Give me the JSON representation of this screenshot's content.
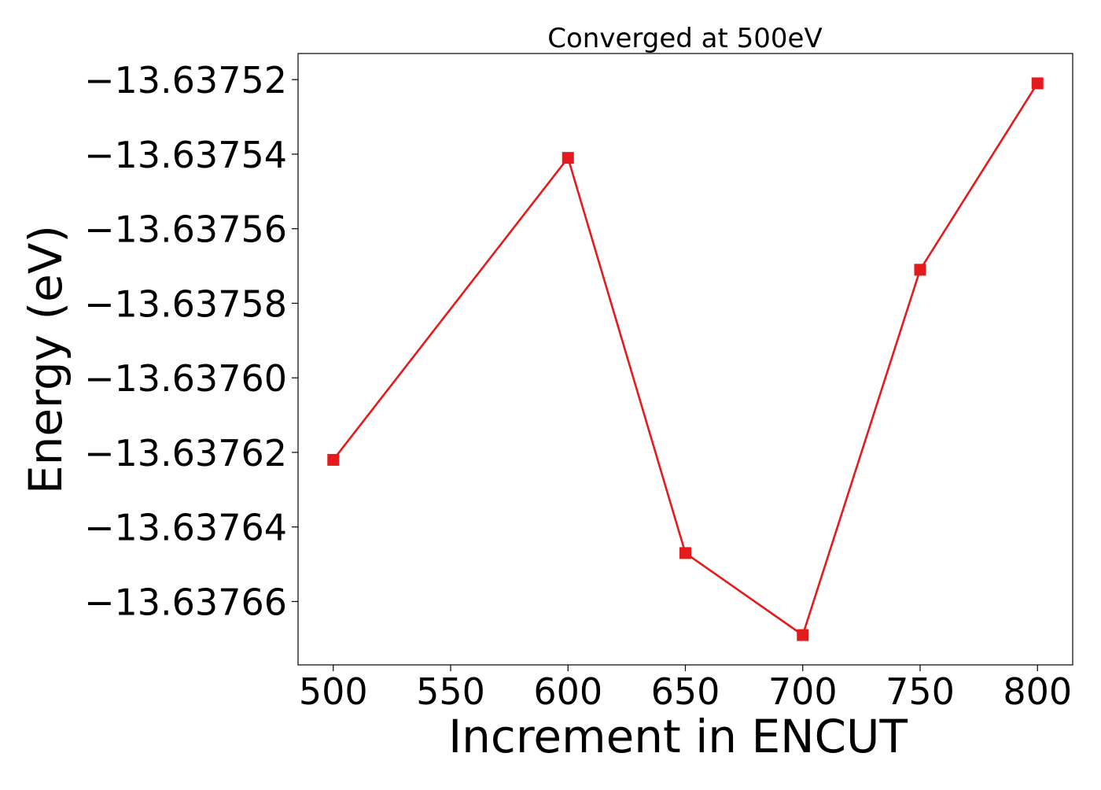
{
  "chart_data": {
    "type": "line",
    "title": "Converged at 500eV",
    "xlabel": "Increment in ENCUT",
    "ylabel": "Energy (eV)",
    "x": [
      500,
      600,
      650,
      700,
      750,
      800
    ],
    "series": [
      {
        "color": "#e41a1c",
        "marker": "square",
        "values": [
          -13.637622,
          -13.637541,
          -13.637647,
          -13.637669,
          -13.637571,
          -13.637521
        ]
      }
    ],
    "xticks": [
      500,
      550,
      600,
      650,
      700,
      750,
      800
    ],
    "xtick_labels": [
      "500",
      "550",
      "600",
      "650",
      "700",
      "750",
      "800"
    ],
    "yticks": [
      -13.63752,
      -13.63754,
      -13.63756,
      -13.63758,
      -13.6376,
      -13.63762,
      -13.63764,
      -13.63766
    ],
    "ytick_labels": [
      "−13.63752",
      "−13.63754",
      "−13.63756",
      "−13.63758",
      "−13.63760",
      "−13.63762",
      "−13.63764",
      "−13.63766"
    ],
    "xlim": [
      485,
      815
    ],
    "ylim": [
      -13.637677,
      -13.637513
    ],
    "grid": false,
    "legend": false
  }
}
